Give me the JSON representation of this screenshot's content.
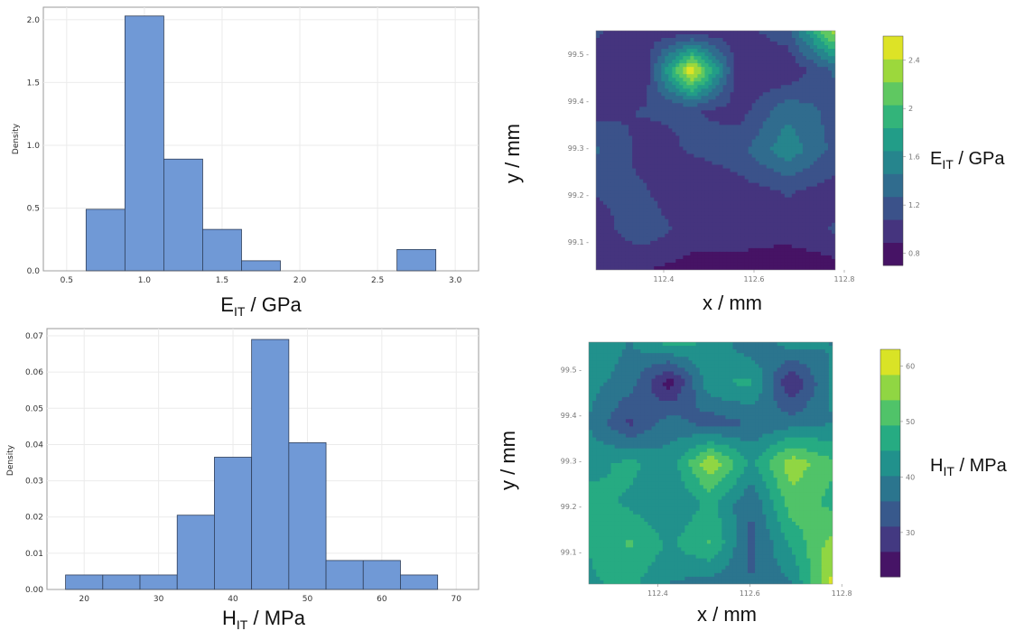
{
  "colors": {
    "bar_fill": "#7099d6",
    "bar_stroke": "#2f3f5a",
    "viridis": [
      "#440154",
      "#482475",
      "#414487",
      "#355f8d",
      "#2a788e",
      "#21918c",
      "#22a884",
      "#44bf70",
      "#7ad151",
      "#bddf26",
      "#fde725"
    ]
  },
  "chart_data": [
    {
      "id": "hist-eit",
      "type": "bar",
      "xlabel": {
        "main": "E",
        "sub": "IT",
        "rest": " / GPa"
      },
      "ylabel": "Density",
      "xlim": [
        0.35,
        3.15
      ],
      "ylim": [
        0,
        2.1
      ],
      "xticks": [
        0.5,
        1.0,
        1.5,
        2.0,
        2.5,
        3.0
      ],
      "xtick_labels": [
        "0.5",
        "1.0",
        "1.5",
        "2.0",
        "2.5",
        "3.0"
      ],
      "yticks": [
        0,
        0.5,
        1.0,
        1.5,
        2.0
      ],
      "ytick_labels": [
        "0.0",
        "0.5",
        "1.0",
        "1.5",
        "2.0"
      ],
      "bins": [
        {
          "x0": 0.625,
          "x1": 0.875,
          "value": 0.49
        },
        {
          "x0": 0.875,
          "x1": 1.125,
          "value": 2.03
        },
        {
          "x0": 1.125,
          "x1": 1.375,
          "value": 0.89
        },
        {
          "x0": 1.375,
          "x1": 1.625,
          "value": 0.33
        },
        {
          "x0": 1.625,
          "x1": 1.875,
          "value": 0.08
        },
        {
          "x0": 2.625,
          "x1": 2.875,
          "value": 0.17
        }
      ]
    },
    {
      "id": "hist-hit",
      "type": "bar",
      "xlabel": {
        "main": "H",
        "sub": "IT",
        "rest": " / MPa"
      },
      "ylabel": "Density",
      "xlim": [
        15,
        73
      ],
      "ylim": [
        0,
        0.072
      ],
      "xticks": [
        20,
        30,
        40,
        50,
        60,
        70
      ],
      "xtick_labels": [
        "20",
        "30",
        "40",
        "50",
        "60",
        "70"
      ],
      "yticks": [
        0,
        0.01,
        0.02,
        0.03,
        0.04,
        0.05,
        0.06,
        0.07
      ],
      "ytick_labels": [
        "0.00",
        "0.01",
        "0.02",
        "0.03",
        "0.04",
        "0.05",
        "0.06",
        "0.07"
      ],
      "bins": [
        {
          "x0": 17.5,
          "x1": 22.5,
          "value": 0.004
        },
        {
          "x0": 22.5,
          "x1": 27.5,
          "value": 0.004
        },
        {
          "x0": 27.5,
          "x1": 32.5,
          "value": 0.004
        },
        {
          "x0": 32.5,
          "x1": 37.5,
          "value": 0.0205
        },
        {
          "x0": 37.5,
          "x1": 42.5,
          "value": 0.0365
        },
        {
          "x0": 42.5,
          "x1": 47.5,
          "value": 0.069
        },
        {
          "x0": 47.5,
          "x1": 52.5,
          "value": 0.0405
        },
        {
          "x0": 52.5,
          "x1": 57.5,
          "value": 0.008
        },
        {
          "x0": 57.5,
          "x1": 62.5,
          "value": 0.008
        },
        {
          "x0": 62.5,
          "x1": 67.5,
          "value": 0.004
        }
      ]
    },
    {
      "id": "map-eit",
      "type": "heatmap",
      "xlabel": "x / mm",
      "ylabel": "y / mm",
      "xlim": [
        112.25,
        112.78
      ],
      "ylim": [
        99.04,
        99.55
      ],
      "xticks": [
        112.4,
        112.6,
        112.8
      ],
      "xtick_labels": [
        "112.4",
        "112.6",
        "112.8"
      ],
      "yticks": [
        99.1,
        99.2,
        99.3,
        99.4,
        99.5
      ],
      "ytick_labels": [
        "99.1",
        "99.2",
        "99.3",
        "99.4",
        "99.5"
      ],
      "colorbar": {
        "label": {
          "main": "E",
          "sub": "IT",
          "rest": " / GPa"
        },
        "range": [
          0.7,
          2.6
        ],
        "ticks": [
          0.8,
          1.2,
          1.6,
          2.0,
          2.4
        ],
        "tick_labels": [
          "0.8",
          "1.2",
          "1.6",
          "2",
          "2.4"
        ]
      },
      "grid": [
        [
          1.1,
          1.0,
          0.9,
          1.0,
          1.2,
          2.4
        ],
        [
          1.0,
          0.9,
          2.6,
          0.9,
          0.9,
          1.3
        ],
        [
          1.0,
          1.1,
          1.1,
          1.0,
          1.4,
          1.2
        ],
        [
          1.3,
          1.0,
          1.1,
          1.2,
          1.6,
          1.2
        ],
        [
          1.1,
          1.1,
          0.9,
          1.0,
          1.1,
          1.0
        ],
        [
          1.0,
          1.2,
          1.0,
          1.0,
          1.0,
          1.1
        ],
        [
          1.0,
          0.9,
          0.8,
          0.8,
          0.7,
          0.8
        ]
      ]
    },
    {
      "id": "map-hit",
      "type": "heatmap",
      "xlabel": "x / mm",
      "ylabel": "y / mm",
      "xlim": [
        112.25,
        112.78
      ],
      "ylim": [
        99.03,
        99.56
      ],
      "xticks": [
        112.4,
        112.6,
        112.8
      ],
      "xtick_labels": [
        "112.4",
        "112.6",
        "112.8"
      ],
      "yticks": [
        99.1,
        99.2,
        99.3,
        99.4,
        99.5
      ],
      "ytick_labels": [
        "99.1",
        "99.2",
        "99.3",
        "99.4",
        "99.5"
      ],
      "colorbar": {
        "label": {
          "main": "H",
          "sub": "IT",
          "rest": " / MPa"
        },
        "range": [
          22,
          63
        ],
        "ticks": [
          30,
          40,
          50,
          60
        ],
        "tick_labels": [
          "30",
          "40",
          "50",
          "60"
        ]
      },
      "grid": [
        [
          44,
          40,
          47,
          44,
          36,
          43,
          40
        ],
        [
          42,
          38,
          24,
          44,
          46,
          26,
          42
        ],
        [
          40,
          30,
          38,
          33,
          36,
          38,
          40
        ],
        [
          43,
          46,
          42,
          58,
          44,
          57,
          50
        ],
        [
          47,
          44,
          40,
          46,
          36,
          52,
          48
        ],
        [
          45,
          50,
          44,
          50,
          34,
          46,
          56
        ],
        [
          44,
          46,
          40,
          38,
          36,
          40,
          60
        ]
      ]
    }
  ]
}
